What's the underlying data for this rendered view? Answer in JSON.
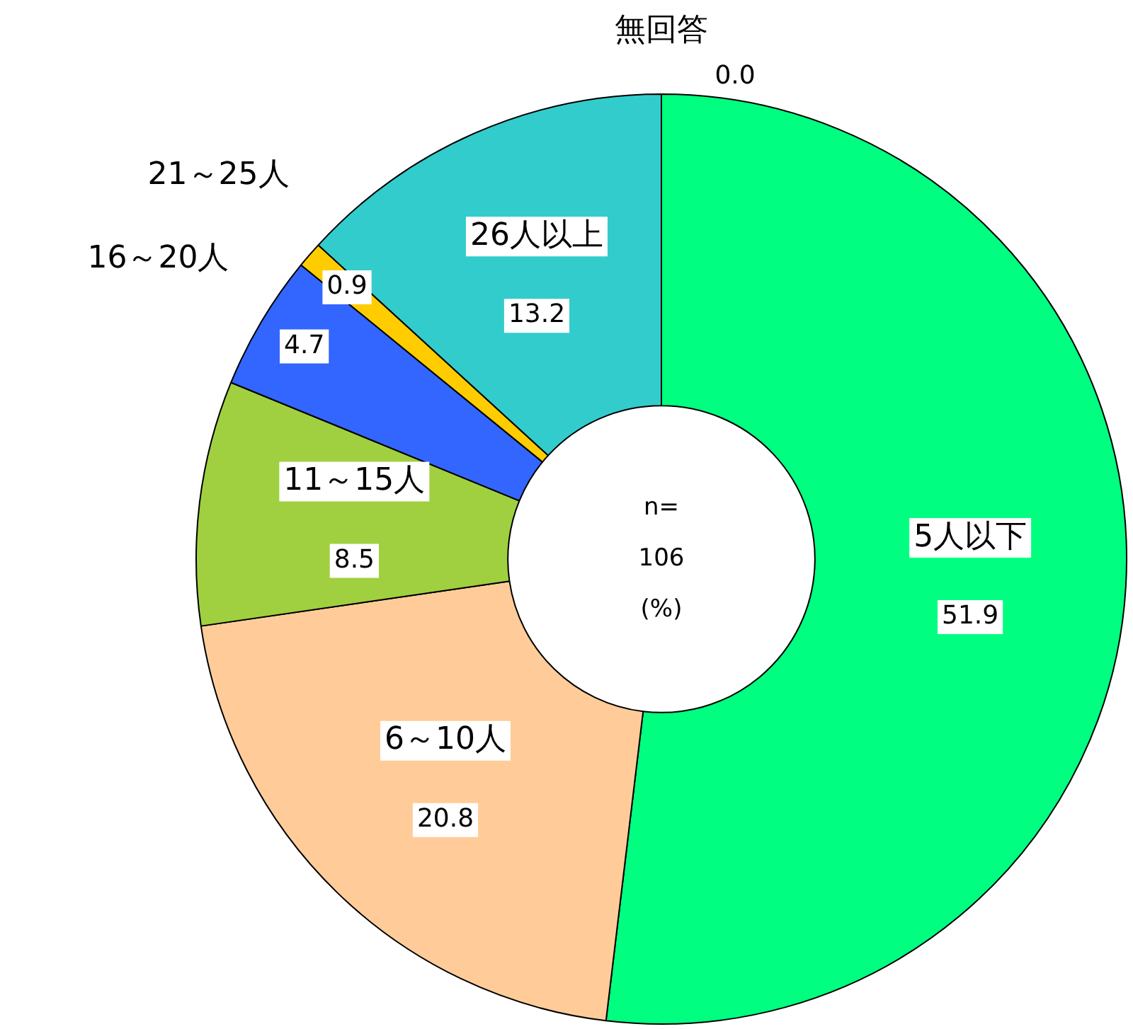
{
  "chart_data": {
    "type": "donut",
    "categories": [
      "5人以下",
      "6～10人",
      "11～15人",
      "16～20人",
      "21～25人",
      "26人以上",
      "無回答"
    ],
    "values": [
      51.9,
      20.8,
      8.5,
      4.7,
      0.9,
      13.2,
      0.0
    ],
    "colors": [
      "#00ff80",
      "#ffcc99",
      "#a0d040",
      "#3366ff",
      "#ffcc00",
      "#33cccc",
      "#ffffff"
    ],
    "value_labels": [
      "51.9",
      "20.8",
      "8.5",
      "4.7",
      "0.9",
      "13.2",
      "0.0"
    ],
    "annotations": [
      "n=",
      "106",
      "(%)"
    ],
    "legend": false
  }
}
